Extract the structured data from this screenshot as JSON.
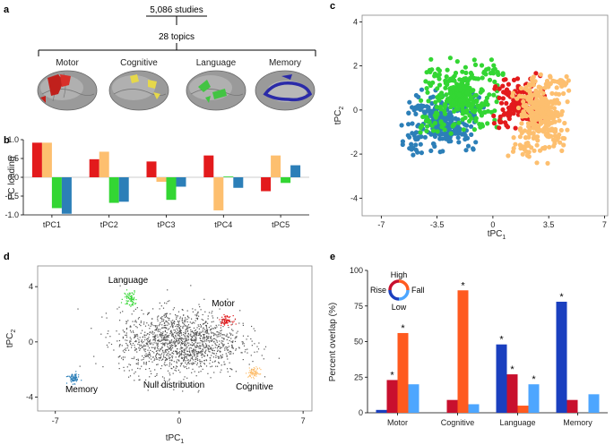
{
  "panels": {
    "a": {
      "label": "a",
      "studies": "5,086 studies",
      "topics": "28 topics",
      "groups": [
        {
          "name": "Motor",
          "color": "#e0302a"
        },
        {
          "name": "Cognitive",
          "color": "#e8d84a"
        },
        {
          "name": "Language",
          "color": "#4fc84a"
        },
        {
          "name": "Memory",
          "color": "#2a2aa8"
        }
      ]
    },
    "b": {
      "label": "b"
    },
    "c": {
      "label": "c"
    },
    "d": {
      "label": "d"
    },
    "e": {
      "label": "e"
    }
  },
  "colors": {
    "motor": "#e31a1c",
    "cognitive": "#fdbf6f",
    "language": "#33d633",
    "memory": "#2c7fb8",
    "null": "#555555",
    "rise_dark": "#1a3fbf",
    "rise": "#c8102e",
    "fall_dark": "#ff5a1f",
    "fall": "#4da6ff"
  },
  "chart_data": [
    {
      "id": "b",
      "type": "bar",
      "title": "",
      "xlabel": "",
      "ylabel": "PC loading",
      "ylim": [
        -1.0,
        1.0
      ],
      "yticks": [
        "1.0",
        "0.5",
        "0.0",
        "-0.5",
        "-1.0"
      ],
      "yticks_values": [
        1.0,
        0.5,
        0.0,
        -0.5,
        -1.0
      ],
      "categories": [
        "tPC1",
        "tPC2",
        "tPC3",
        "tPC4",
        "tPC5"
      ],
      "series": [
        {
          "name": "Motor",
          "values": [
            0.92,
            0.48,
            0.42,
            0.58,
            -0.37
          ]
        },
        {
          "name": "Cognitive",
          "values": [
            0.92,
            0.68,
            -0.12,
            -0.88,
            0.58
          ]
        },
        {
          "name": "Language",
          "values": [
            -0.82,
            -0.68,
            -0.6,
            0.02,
            -0.15
          ]
        },
        {
          "name": "Memory",
          "values": [
            -0.97,
            -0.65,
            -0.25,
            -0.28,
            0.32
          ]
        }
      ]
    },
    {
      "id": "c",
      "type": "scatter",
      "title": "",
      "xlabel": "tPC",
      "xlabel_sub": "1",
      "ylabel": "tPC",
      "ylabel_sub": "2",
      "xlim": [
        -8.2,
        7.2
      ],
      "ylim": [
        -4.8,
        4.3
      ],
      "xticks": [
        "-7",
        "-3.5",
        "0",
        "3.5",
        "7"
      ],
      "xticks_values": [
        -7,
        -3.5,
        0,
        3.5,
        7
      ],
      "yticks": [
        "4",
        "2",
        "0",
        "-2",
        "-4"
      ],
      "yticks_values": [
        4,
        2,
        0,
        -2,
        -4
      ],
      "series": [
        {
          "name": "Memory",
          "center": [
            -3.2,
            -0.6
          ],
          "spread": [
            2.1,
            1.2
          ],
          "count": 300
        },
        {
          "name": "Language",
          "center": [
            -2.0,
            0.6
          ],
          "spread": [
            2.4,
            1.5
          ],
          "count": 320
        },
        {
          "name": "Motor",
          "center": [
            1.6,
            0.3
          ],
          "spread": [
            1.4,
            1.0
          ],
          "count": 160
        },
        {
          "name": "Cognitive",
          "center": [
            3.0,
            -0.2
          ],
          "spread": [
            1.5,
            1.8
          ],
          "count": 360
        }
      ]
    },
    {
      "id": "d",
      "type": "scatter",
      "title": "",
      "xlabel": "tPC",
      "xlabel_sub": "1",
      "ylabel": "tPC",
      "ylabel_sub": "2",
      "xlim": [
        -8.0,
        7.5
      ],
      "ylim": [
        -5.0,
        5.5
      ],
      "xticks": [
        "-7",
        "0",
        "7"
      ],
      "xticks_values": [
        -7,
        0,
        7
      ],
      "yticks": [
        "4",
        "0",
        "-4"
      ],
      "yticks_values": [
        4,
        0,
        -4
      ],
      "clusters": [
        {
          "name": "Null distribution",
          "center": [
            0,
            0
          ],
          "spread": [
            1.7,
            1.15
          ],
          "count": 1500
        },
        {
          "name": "Language",
          "center": [
            -2.8,
            3.2
          ],
          "spread": [
            0.18,
            0.28
          ],
          "count": 70
        },
        {
          "name": "Motor",
          "center": [
            2.6,
            1.6
          ],
          "spread": [
            0.18,
            0.16
          ],
          "count": 70
        },
        {
          "name": "Cognitive",
          "center": [
            4.2,
            -2.2
          ],
          "spread": [
            0.16,
            0.18
          ],
          "count": 70
        },
        {
          "name": "Memory",
          "center": [
            -6.0,
            -2.6
          ],
          "spread": [
            0.16,
            0.18
          ],
          "count": 70
        }
      ],
      "annotations": [
        "Language",
        "Motor",
        "Null distribution",
        "Cognitive",
        "Memory"
      ]
    },
    {
      "id": "e",
      "type": "bar",
      "title": "",
      "xlabel": "",
      "ylabel": "Percent overlap (%)",
      "ylim": [
        0,
        100
      ],
      "yticks": [
        "100",
        "75",
        "50",
        "25",
        "0"
      ],
      "yticks_values": [
        100,
        75,
        50,
        25,
        0
      ],
      "categories": [
        "Motor",
        "Cognitive",
        "Language",
        "Memory"
      ],
      "series": [
        {
          "name": "Low",
          "values": [
            2,
            0,
            48,
            78
          ]
        },
        {
          "name": "Rise",
          "values": [
            23,
            9,
            27,
            9
          ]
        },
        {
          "name": "High",
          "values": [
            56,
            86,
            5,
            0
          ]
        },
        {
          "name": "Fall",
          "values": [
            20,
            6,
            20,
            13
          ]
        }
      ],
      "significant": [
        [
          false,
          true,
          true,
          false
        ],
        [
          false,
          false,
          true,
          false
        ],
        [
          true,
          true,
          false,
          true
        ],
        [
          true,
          false,
          false,
          false
        ]
      ],
      "significance_marker": "*",
      "legend": {
        "top": "High",
        "left": "Rise",
        "right": "Fall",
        "bottom": "Low"
      }
    }
  ]
}
